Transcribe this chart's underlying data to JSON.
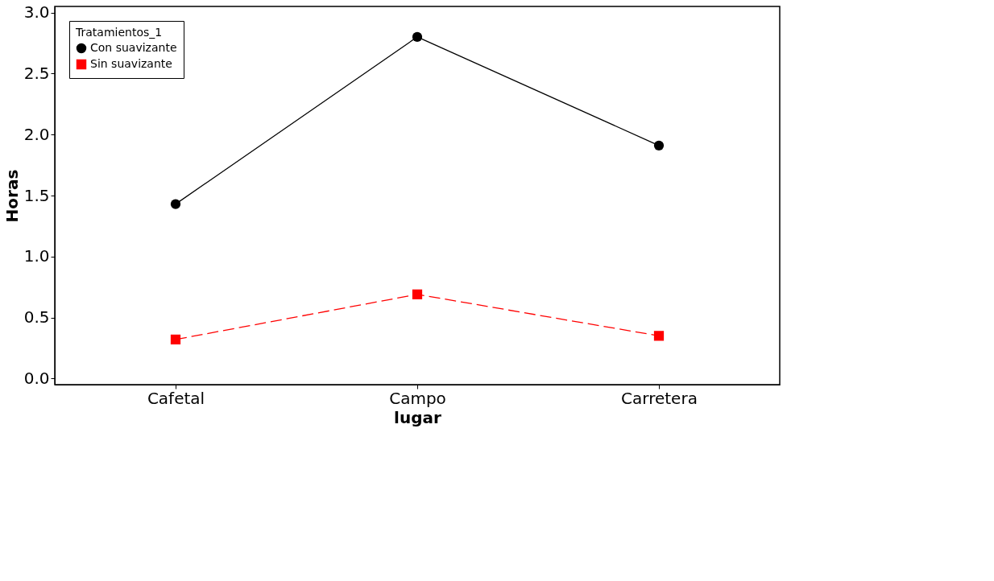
{
  "chart_data": {
    "type": "line",
    "xlabel": "lugar",
    "ylabel": "Horas",
    "legend_title": "Tratamientos_1",
    "categories": [
      "Cafetal",
      "Campo",
      "Carretera"
    ],
    "series": [
      {
        "name": "Con suavizante",
        "color": "#000000",
        "values": [
          1.43,
          2.8,
          1.91
        ],
        "marker": "circle",
        "line_style": "solid"
      },
      {
        "name": "Sin suavizante",
        "color": "#ff0000",
        "values": [
          0.32,
          0.69,
          0.35
        ],
        "marker": "square",
        "line_style": "dashed"
      }
    ],
    "ylim": [
      -0.05,
      3.05
    ],
    "yticks": [
      {
        "value": 0,
        "label": "0.0"
      },
      0.5,
      {
        "value": 1,
        "label": "1.0"
      },
      1.5,
      {
        "value": 2,
        "label": "2.0"
      },
      2.5,
      {
        "value": 3,
        "label": "3.0"
      }
    ],
    "grid": false,
    "legend": "top left"
  }
}
